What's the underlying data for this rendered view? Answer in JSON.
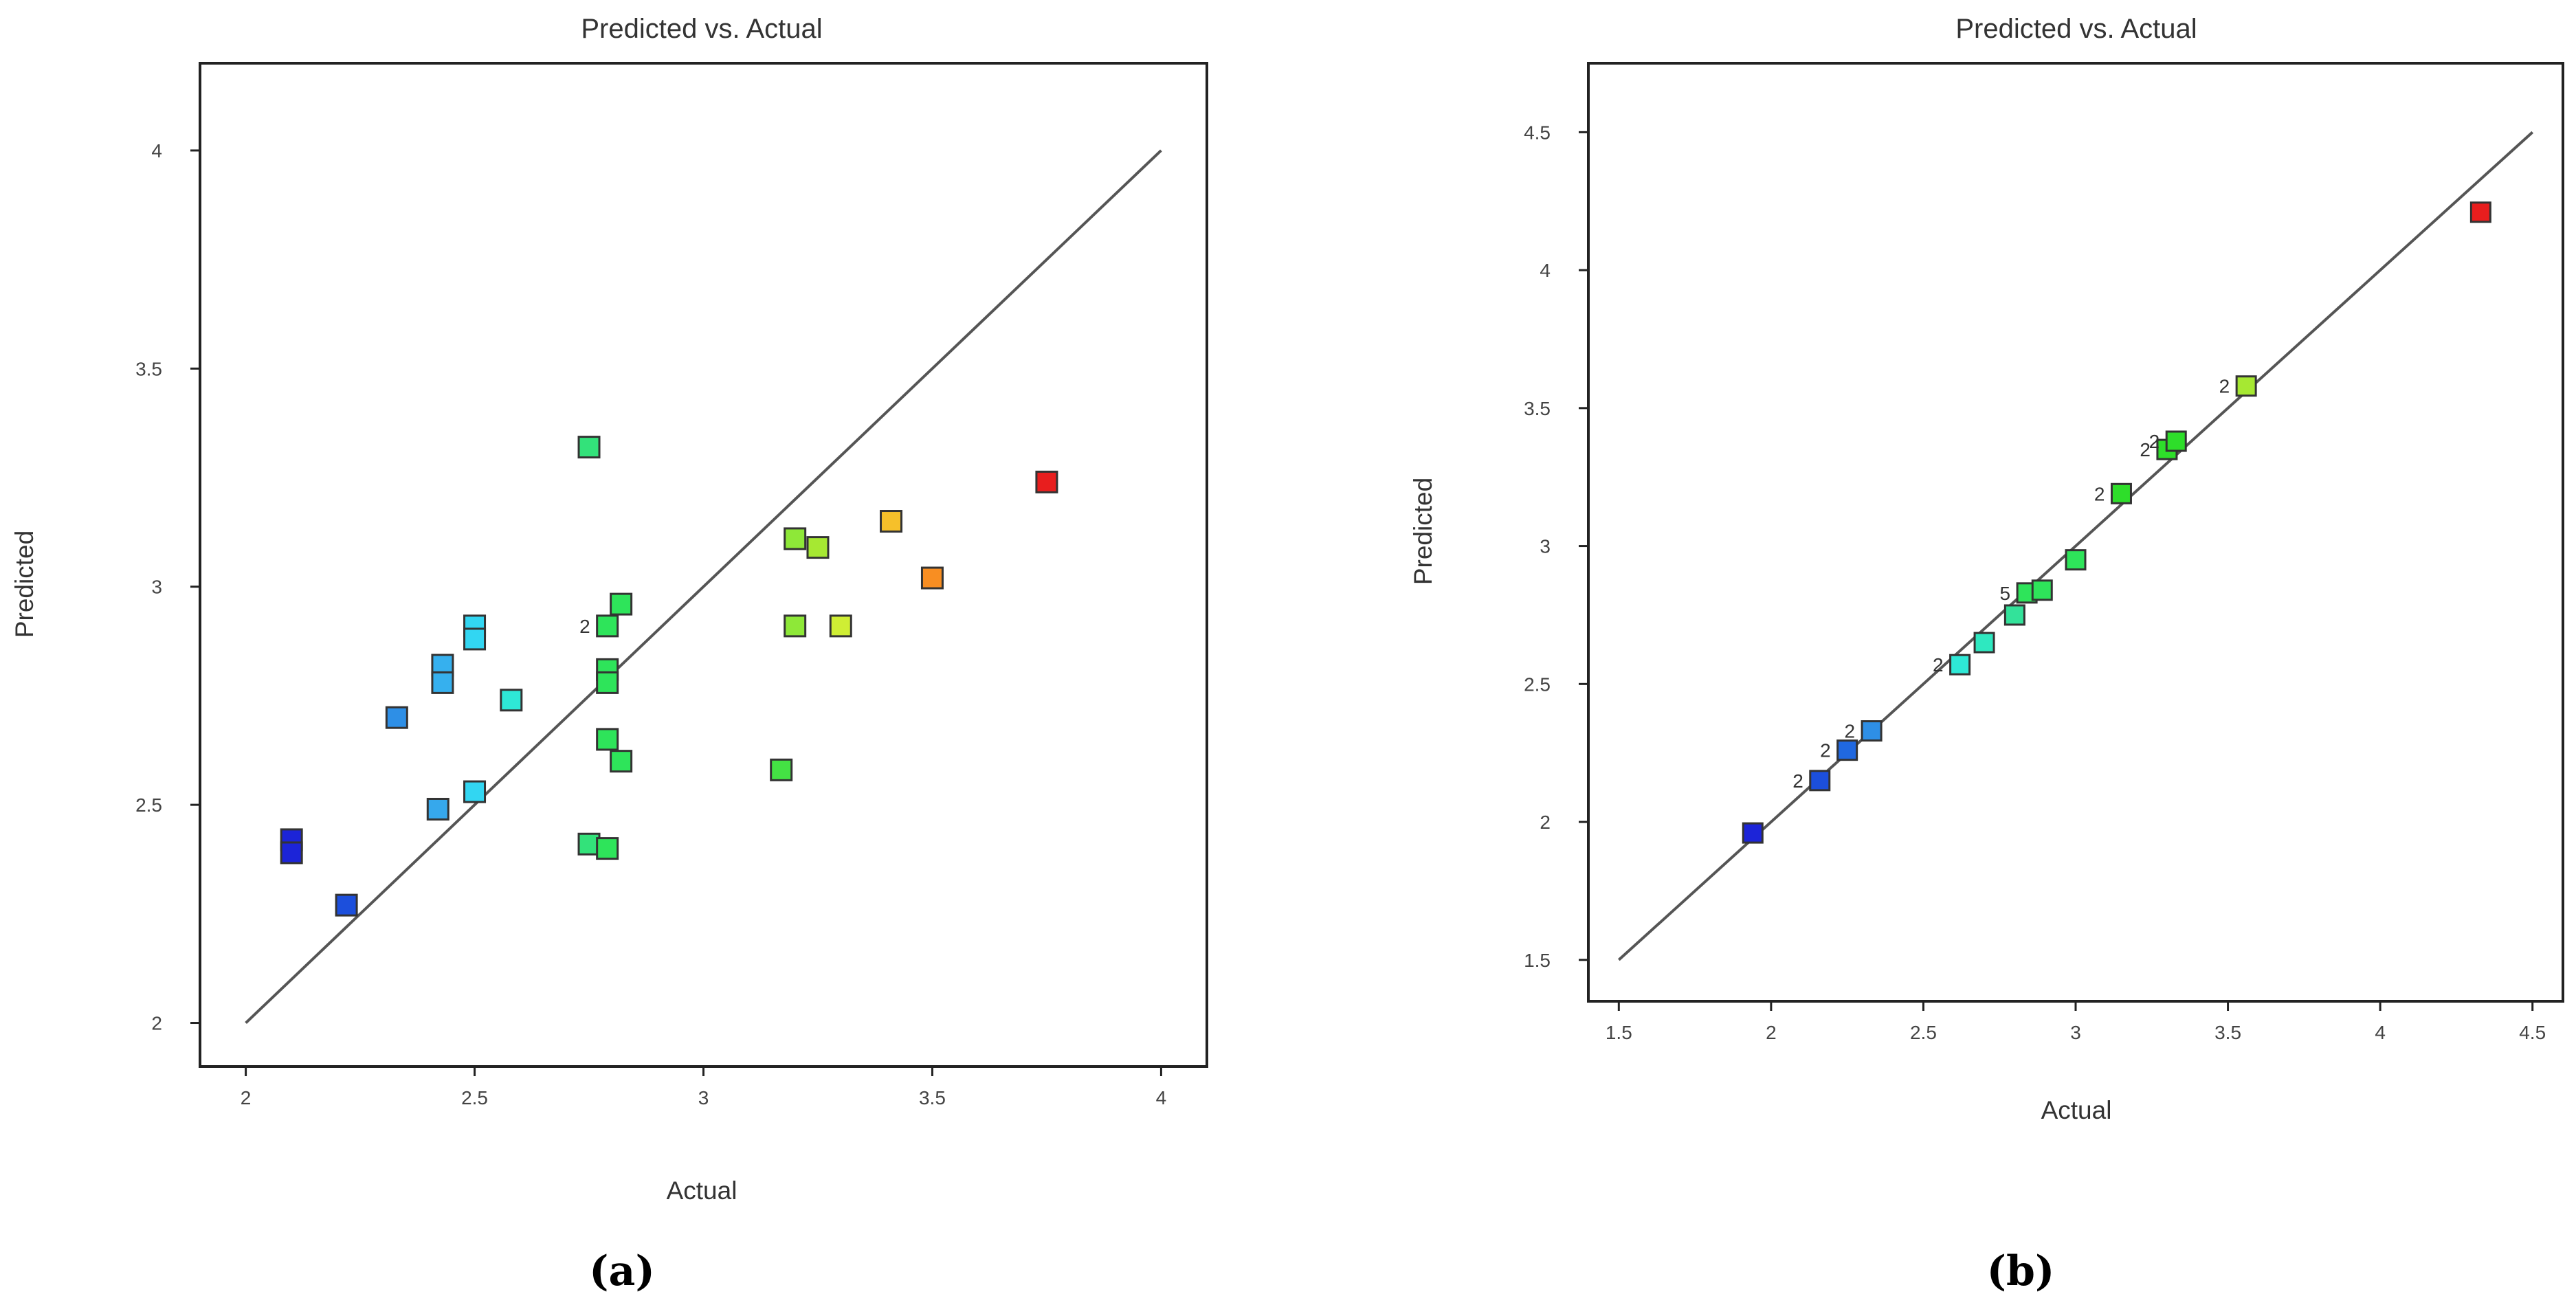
{
  "chart_data": [
    {
      "type": "scatter",
      "panel_label": "(a)",
      "title": "Predicted vs. Actual",
      "xlabel": "Actual",
      "ylabel": "Predicted",
      "xlim": [
        1.9,
        4.1
      ],
      "ylim": [
        1.9,
        4.2
      ],
      "xticks": [
        "2",
        "2.5",
        "3",
        "3.5",
        "4"
      ],
      "yticks": [
        "2",
        "2.5",
        "3",
        "3.5",
        "4"
      ],
      "reference_line": [
        [
          2,
          2
        ],
        [
          4,
          4
        ]
      ],
      "points": [
        {
          "x": 2.1,
          "y": 2.42,
          "color": "#1c24d8"
        },
        {
          "x": 2.1,
          "y": 2.39,
          "color": "#1c24d8"
        },
        {
          "x": 2.22,
          "y": 2.27,
          "color": "#1c4fdc"
        },
        {
          "x": 2.33,
          "y": 2.7,
          "color": "#2e8fe6"
        },
        {
          "x": 2.42,
          "y": 2.49,
          "color": "#36a8ec"
        },
        {
          "x": 2.43,
          "y": 2.82,
          "color": "#36b0ee"
        },
        {
          "x": 2.43,
          "y": 2.78,
          "color": "#36b0ee"
        },
        {
          "x": 2.5,
          "y": 2.91,
          "color": "#32d6f2"
        },
        {
          "x": 2.5,
          "y": 2.88,
          "color": "#32d6f2"
        },
        {
          "x": 2.5,
          "y": 2.53,
          "color": "#32d6f2"
        },
        {
          "x": 2.58,
          "y": 2.74,
          "color": "#2ee8d6"
        },
        {
          "x": 2.75,
          "y": 3.32,
          "color": "#33e27a"
        },
        {
          "x": 2.75,
          "y": 2.41,
          "color": "#33e27a"
        },
        {
          "x": 2.79,
          "y": 2.91,
          "color": "#2ee45a",
          "label": "2"
        },
        {
          "x": 2.79,
          "y": 2.81,
          "color": "#2ee45a"
        },
        {
          "x": 2.79,
          "y": 2.78,
          "color": "#2ee45a"
        },
        {
          "x": 2.79,
          "y": 2.65,
          "color": "#2ee45a"
        },
        {
          "x": 2.79,
          "y": 2.4,
          "color": "#2ee45a"
        },
        {
          "x": 2.82,
          "y": 2.96,
          "color": "#2ee45a"
        },
        {
          "x": 2.82,
          "y": 2.6,
          "color": "#2ee45a"
        },
        {
          "x": 3.17,
          "y": 2.58,
          "color": "#44e244"
        },
        {
          "x": 3.2,
          "y": 3.11,
          "color": "#8ee838"
        },
        {
          "x": 3.2,
          "y": 2.91,
          "color": "#8ee838"
        },
        {
          "x": 3.25,
          "y": 3.09,
          "color": "#a6e832"
        },
        {
          "x": 3.3,
          "y": 2.91,
          "color": "#cfee34"
        },
        {
          "x": 3.41,
          "y": 3.15,
          "color": "#f6c02a"
        },
        {
          "x": 3.5,
          "y": 3.02,
          "color": "#f88e22"
        },
        {
          "x": 3.75,
          "y": 3.24,
          "color": "#e81e1e"
        }
      ]
    },
    {
      "type": "scatter",
      "panel_label": "(b)",
      "title": "Predicted vs. Actual",
      "xlabel": "Actual",
      "ylabel": "Predicted",
      "xlim": [
        1.4,
        4.6
      ],
      "ylim": [
        1.35,
        4.75
      ],
      "xticks": [
        "1.5",
        "2",
        "2.5",
        "3",
        "3.5",
        "4",
        "4.5"
      ],
      "yticks": [
        "1.5",
        "2",
        "2.5",
        "3",
        "3.5",
        "4",
        "4.5"
      ],
      "reference_line": [
        [
          1.5,
          1.5
        ],
        [
          4.5,
          4.5
        ]
      ],
      "points": [
        {
          "x": 1.94,
          "y": 1.96,
          "color": "#1c24d8"
        },
        {
          "x": 2.16,
          "y": 2.15,
          "color": "#1c4fdc",
          "label": "2"
        },
        {
          "x": 2.25,
          "y": 2.26,
          "color": "#2068e0",
          "label": "2"
        },
        {
          "x": 2.33,
          "y": 2.33,
          "color": "#2e8fe6",
          "label": "2"
        },
        {
          "x": 2.62,
          "y": 2.57,
          "color": "#2ee8d6",
          "label": "2"
        },
        {
          "x": 2.7,
          "y": 2.65,
          "color": "#2ee8c0"
        },
        {
          "x": 2.8,
          "y": 2.75,
          "color": "#33e29a"
        },
        {
          "x": 2.84,
          "y": 2.83,
          "color": "#2ee45a",
          "label": "5"
        },
        {
          "x": 2.89,
          "y": 2.84,
          "color": "#2ee45a"
        },
        {
          "x": 3.0,
          "y": 2.95,
          "color": "#2ee45a"
        },
        {
          "x": 3.15,
          "y": 3.19,
          "color": "#2ede2a",
          "label": "2"
        },
        {
          "x": 3.3,
          "y": 3.35,
          "color": "#2ede2a",
          "label": "2"
        },
        {
          "x": 3.33,
          "y": 3.38,
          "color": "#2ede2a",
          "label": "2"
        },
        {
          "x": 3.56,
          "y": 3.58,
          "color": "#a6e832",
          "label": "2"
        },
        {
          "x": 4.33,
          "y": 4.21,
          "color": "#e81e1e"
        }
      ]
    }
  ]
}
